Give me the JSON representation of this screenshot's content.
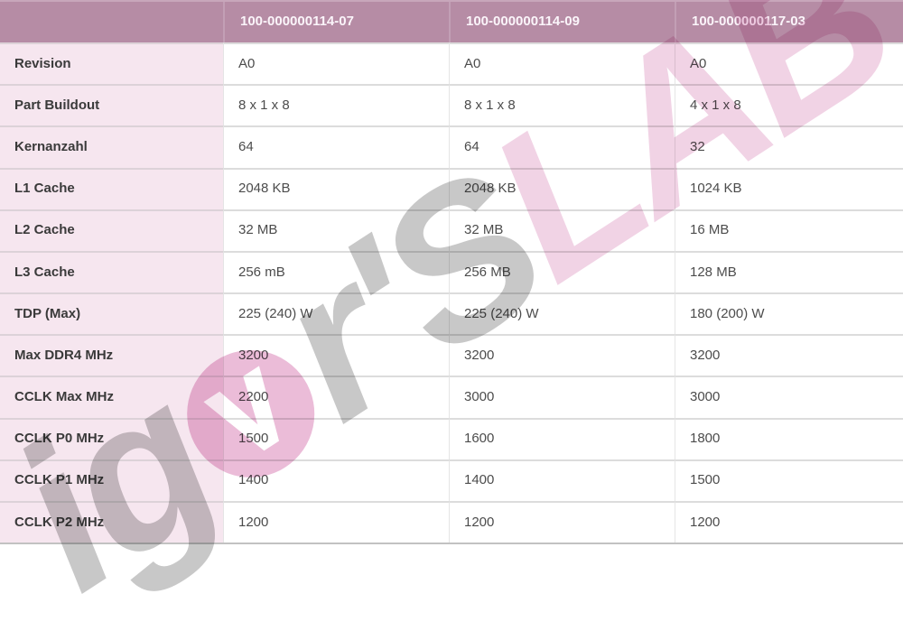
{
  "table": {
    "columns": [
      "100-000000114-07",
      "100-000000114-09",
      "100-000000117-03"
    ],
    "rows": [
      {
        "label": "Revision",
        "values": [
          "A0",
          "A0",
          "A0"
        ]
      },
      {
        "label": "Part Buildout",
        "values": [
          "8 x 1 x 8",
          "8 x 1 x 8",
          "4 x 1 x 8"
        ]
      },
      {
        "label": "Kernanzahl",
        "values": [
          "64",
          "64",
          "32"
        ]
      },
      {
        "label": "L1 Cache",
        "values": [
          "2048 KB",
          "2048 KB",
          "1024 KB"
        ]
      },
      {
        "label": "L2 Cache",
        "values": [
          "32 MB",
          "32 MB",
          "16 MB"
        ]
      },
      {
        "label": "L3 Cache",
        "values": [
          "256 mB",
          "256 MB",
          "128 MB"
        ]
      },
      {
        "label": "TDP (Max)",
        "values": [
          "225 (240) W",
          "225 (240) W",
          "180 (200) W"
        ]
      },
      {
        "label": "Max DDR4 MHz",
        "values": [
          "3200",
          "3200",
          "3200"
        ]
      },
      {
        "label": "CCLK Max MHz",
        "values": [
          "2200",
          "3000",
          "3000"
        ]
      },
      {
        "label": "CCLK P0 MHz",
        "values": [
          "1500",
          "1600",
          "1800"
        ]
      },
      {
        "label": "CCLK P1 MHz",
        "values": [
          "1400",
          "1400",
          "1500"
        ]
      },
      {
        "label": "CCLK P2 MHz",
        "values": [
          "1200",
          "1200",
          "1200"
        ]
      }
    ]
  },
  "watermark": {
    "prefix": "ig",
    "middle": "r'S",
    "suffix": "LAB",
    "full_text": "igor'sLAB"
  },
  "colors": {
    "header_bg": "#b68ca5",
    "header_text": "#fbf5fa",
    "label_column_bg": "#f6e6ef",
    "watermark_gray": "#c8c8c8",
    "watermark_pink": "#f1d3e5",
    "watermark_logo_pink": "#ebbcd8"
  }
}
